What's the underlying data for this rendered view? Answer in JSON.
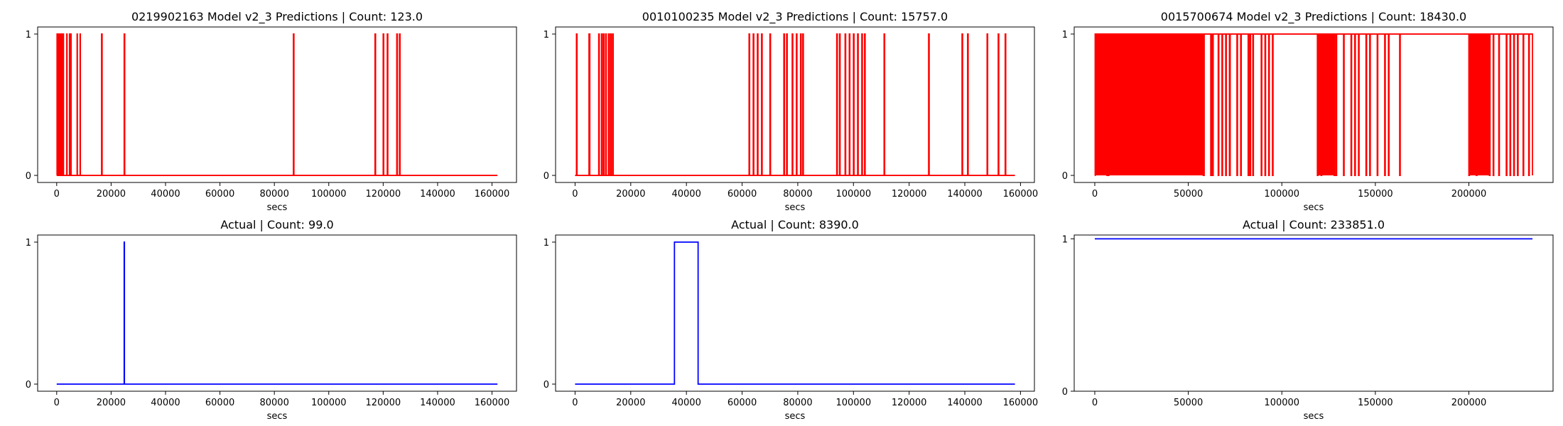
{
  "colors": {
    "prediction": "#ff0000",
    "actual": "#0000ff"
  },
  "chart_data": [
    {
      "type": "line",
      "step": true,
      "title": "0219902163 Model v2_3 Predictions | Count: 123.0",
      "xlabel": "secs",
      "ylabel": "",
      "xlim": [
        -7000,
        169000
      ],
      "ylim": [
        -0.05,
        1.05
      ],
      "xticks": [
        0,
        20000,
        40000,
        60000,
        80000,
        100000,
        120000,
        140000,
        160000
      ],
      "yticks": [
        0,
        1
      ],
      "series": [
        {
          "color": "#ff0000",
          "x": [
            0,
            120,
            260,
            600,
            700,
            1000,
            1100,
            1500,
            1600,
            1900,
            2000,
            2300,
            2500,
            3700,
            3800,
            4700,
            4900,
            5200,
            5300,
            7500,
            7600,
            8600,
            8700,
            16500,
            16700,
            24800,
            25000,
            87000,
            87200,
            117000,
            117200,
            120000,
            120200,
            121500,
            121700,
            125000,
            125200,
            126000,
            126200,
            162000
          ],
          "y": [
            0,
            1,
            0,
            1,
            0,
            1,
            0,
            1,
            0,
            1,
            0,
            1,
            0,
            1,
            0,
            1,
            0,
            1,
            0,
            1,
            0,
            1,
            0,
            1,
            0,
            1,
            0,
            1,
            0,
            1,
            0,
            1,
            0,
            1,
            0,
            1,
            0,
            1,
            0,
            0
          ]
        }
      ]
    },
    {
      "type": "line",
      "step": true,
      "title": "0010100235 Model v2_3 Predictions | Count: 15757.0",
      "xlabel": "secs",
      "ylabel": "",
      "xlim": [
        -7000,
        165000
      ],
      "ylim": [
        -0.05,
        1.05
      ],
      "xticks": [
        0,
        20000,
        40000,
        60000,
        80000,
        100000,
        120000,
        140000,
        160000
      ],
      "yticks": [
        0,
        1
      ],
      "series": [
        {
          "color": "#ff0000",
          "x": [
            0,
            500,
            700,
            5000,
            5300,
            8500,
            8700,
            9500,
            9700,
            10200,
            10400,
            11000,
            11200,
            12000,
            12300,
            12800,
            13000,
            13500,
            13700,
            62500,
            62700,
            64000,
            64200,
            65500,
            65700,
            67000,
            67200,
            70000,
            70200,
            75000,
            75200,
            76000,
            76200,
            78000,
            78200,
            79500,
            79700,
            81000,
            81200,
            81800,
            82000,
            94000,
            94200,
            95000,
            95200,
            97000,
            97200,
            98500,
            98700,
            100000,
            100200,
            101500,
            101700,
            103000,
            103200,
            104000,
            104200,
            111000,
            111200,
            127000,
            127200,
            139000,
            139200,
            141000,
            141200,
            148000,
            148200,
            152000,
            152200,
            154500,
            154700,
            158000
          ],
          "y": [
            0,
            1,
            0,
            1,
            0,
            1,
            0,
            1,
            0,
            1,
            0,
            1,
            0,
            1,
            0,
            1,
            0,
            1,
            0,
            1,
            0,
            1,
            0,
            1,
            0,
            1,
            0,
            1,
            0,
            1,
            0,
            1,
            0,
            1,
            0,
            1,
            0,
            1,
            0,
            1,
            0,
            1,
            0,
            1,
            0,
            1,
            0,
            1,
            0,
            1,
            0,
            1,
            0,
            1,
            0,
            1,
            0,
            1,
            0,
            1,
            0,
            1,
            0,
            1,
            0,
            1,
            0,
            1,
            0,
            1,
            0,
            0
          ]
        }
      ]
    },
    {
      "type": "line",
      "step": true,
      "title": "0015700674 Model v2_3 Predictions | Count: 18430.0",
      "xlabel": "secs",
      "ylabel": "",
      "xlim": [
        -11000,
        245000
      ],
      "ylim": [
        -0.05,
        1.05
      ],
      "xticks": [
        0,
        50000,
        100000,
        150000,
        200000
      ],
      "yticks": [
        0,
        1
      ],
      "series": [
        {
          "color": "#ff0000",
          "x": [
            0,
            200,
            6500,
            6800,
            7200,
            7500,
            58000,
            58500,
            62000,
            62400,
            63000,
            63300,
            66000,
            66300,
            68000,
            68300,
            70000,
            70300,
            72000,
            72400,
            76000,
            76300,
            78000,
            78300,
            82000,
            82300,
            83000,
            83300,
            84500,
            84800,
            89000,
            89300,
            91000,
            91300,
            93000,
            93300,
            95000,
            95300,
            119000,
            119300,
            121000,
            121300,
            128000,
            128300,
            129000,
            129300,
            133000,
            133300,
            137000,
            137300,
            139000,
            139300,
            141000,
            141300,
            145000,
            145300,
            147000,
            147300,
            151000,
            151300,
            155000,
            155300,
            157000,
            157300,
            163000,
            163300,
            200000,
            200300,
            204000,
            204300,
            211000,
            211300,
            213000,
            213300,
            216000,
            216300,
            220000,
            220300,
            222000,
            222300,
            224000,
            224300,
            226000,
            226300,
            229000,
            229300,
            232000,
            232300,
            234000
          ],
          "y": [
            0,
            1,
            0,
            1,
            0,
            1,
            0,
            1,
            0,
            1,
            0,
            1,
            0,
            1,
            0,
            1,
            0,
            1,
            0,
            1,
            0,
            1,
            0,
            1,
            0,
            1,
            0,
            1,
            0,
            1,
            0,
            1,
            0,
            1,
            0,
            1,
            0,
            1,
            0,
            1,
            0,
            1,
            0,
            1,
            0,
            1,
            0,
            1,
            0,
            1,
            0,
            1,
            0,
            1,
            0,
            1,
            0,
            1,
            0,
            1,
            0,
            1,
            0,
            1,
            0,
            1,
            0,
            1,
            0,
            1,
            0,
            1,
            0,
            1,
            0,
            1,
            0,
            1,
            0,
            1,
            0,
            1,
            0,
            1,
            0,
            1,
            0,
            1,
            0
          ]
        }
      ],
      "fills": [
        [
          200,
          6500
        ],
        [
          7500,
          58000
        ],
        [
          119300,
          121000
        ],
        [
          121300,
          128000
        ],
        [
          200300,
          204000
        ],
        [
          204300,
          211000
        ]
      ]
    },
    {
      "type": "line",
      "step": true,
      "title": "Actual | Count: 99.0",
      "xlabel": "secs",
      "ylabel": "",
      "xlim": [
        -7000,
        169000
      ],
      "ylim": [
        -0.05,
        1.05
      ],
      "xticks": [
        0,
        20000,
        40000,
        60000,
        80000,
        100000,
        120000,
        140000,
        160000
      ],
      "yticks": [
        0,
        1
      ],
      "series": [
        {
          "color": "#0000ff",
          "x": [
            0,
            24800,
            24900,
            162000
          ],
          "y": [
            0,
            1,
            0,
            0
          ]
        }
      ]
    },
    {
      "type": "line",
      "step": true,
      "title": "Actual | Count: 8390.0",
      "xlabel": "secs",
      "ylabel": "",
      "xlim": [
        -7000,
        165000
      ],
      "ylim": [
        -0.05,
        1.05
      ],
      "xticks": [
        0,
        20000,
        40000,
        60000,
        80000,
        100000,
        120000,
        140000,
        160000
      ],
      "yticks": [
        0,
        1
      ],
      "series": [
        {
          "color": "#0000ff",
          "x": [
            0,
            35700,
            44200,
            158000
          ],
          "y": [
            0,
            1,
            0,
            0
          ]
        }
      ]
    },
    {
      "type": "line",
      "step": true,
      "title": "Actual | Count: 233851.0",
      "xlabel": "secs",
      "ylabel": "",
      "xlim": [
        -11000,
        245000
      ],
      "ylim": [
        0,
        1.025
      ],
      "xticks": [
        0,
        50000,
        100000,
        150000,
        200000
      ],
      "yticks": [
        0,
        1
      ],
      "series": [
        {
          "color": "#0000ff",
          "x": [
            0,
            234000
          ],
          "y": [
            1,
            1
          ]
        }
      ]
    }
  ]
}
